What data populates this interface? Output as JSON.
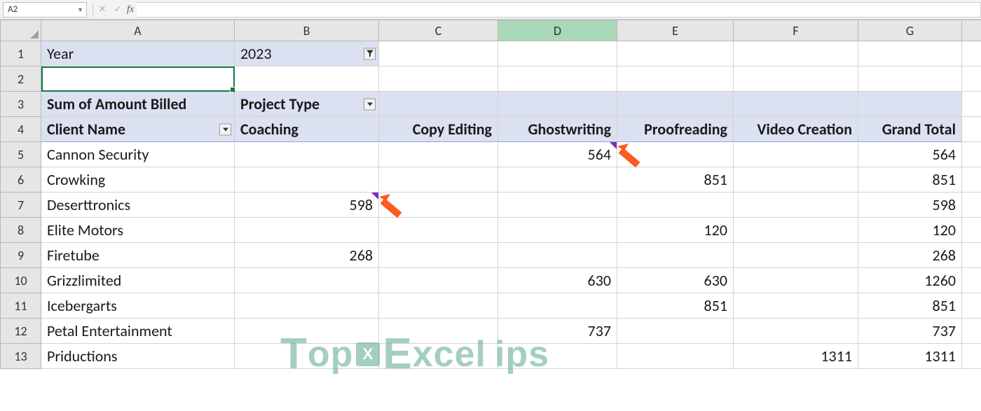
{
  "formula_bar": {
    "name_box_value": "A2",
    "fx_label": "fx",
    "formula_value": ""
  },
  "columns": [
    "A",
    "B",
    "C",
    "D",
    "E",
    "F",
    "G"
  ],
  "highlighted_column": "D",
  "selected_cell": "A2",
  "pivot": {
    "filter_field_label": "Year",
    "filter_field_value": "2023",
    "values_label": "Sum of Amount Billed",
    "col_field_label": "Project Type",
    "row_field_label": "Client Name",
    "col_headers": [
      "Coaching",
      "Copy Editing",
      "Ghostwriting",
      "Proofreading",
      "Video Creation",
      "Grand Total"
    ]
  },
  "rows": [
    {
      "n": 1
    },
    {
      "n": 2
    },
    {
      "n": 3
    },
    {
      "n": 4
    },
    {
      "n": 5,
      "client": "Cannon Security",
      "vals": [
        "",
        "",
        "564",
        "",
        "",
        "564"
      ],
      "note_col": "D"
    },
    {
      "n": 6,
      "client": "Crowking",
      "vals": [
        "",
        "",
        "",
        "851",
        "",
        "851"
      ]
    },
    {
      "n": 7,
      "client": "Deserttronics",
      "vals": [
        "598",
        "",
        "",
        "",
        "",
        "598"
      ],
      "note_col": "B"
    },
    {
      "n": 8,
      "client": "Elite Motors",
      "vals": [
        "",
        "",
        "",
        "120",
        "",
        "120"
      ]
    },
    {
      "n": 9,
      "client": "Firetube",
      "vals": [
        "268",
        "",
        "",
        "",
        "",
        "268"
      ]
    },
    {
      "n": 10,
      "client": "Grizzlimited",
      "vals": [
        "",
        "",
        "630",
        "630",
        "",
        "1260"
      ]
    },
    {
      "n": 11,
      "client": "Icebergarts",
      "vals": [
        "",
        "",
        "",
        "851",
        "",
        "851"
      ]
    },
    {
      "n": 12,
      "client": "Petal Entertainment",
      "vals": [
        "",
        "",
        "737",
        "",
        "",
        "737"
      ]
    },
    {
      "n": 13,
      "client": "Priductions",
      "vals": [
        "",
        "",
        "",
        "",
        "1311",
        "1311"
      ]
    }
  ],
  "colors": {
    "pivot_header_bg": "#dbe1f1",
    "col_hl_bg": "#a9d8b8",
    "selection_border": "#107c41",
    "note_indicator": "#7b2bbf",
    "arrow": "#ff5a1f",
    "watermark": "#5aa78a"
  },
  "watermark_text": {
    "t": "T",
    "op": "op",
    "e": "E",
    "xcel": "xcel",
    "ips": "ips"
  },
  "arrows": [
    {
      "at_cell": "D5"
    },
    {
      "at_cell": "B7"
    }
  ]
}
